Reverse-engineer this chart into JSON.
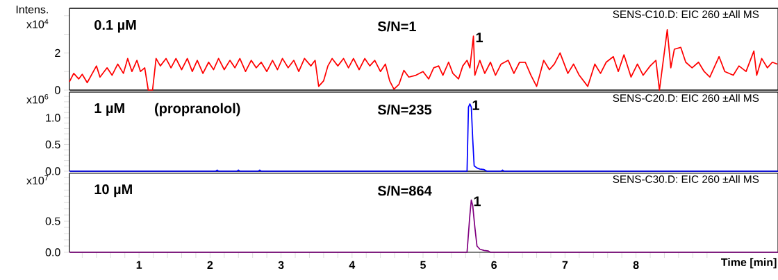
{
  "chart_data": [
    {
      "type": "line",
      "ylabel": "Intens. x10$^{4}$",
      "color": "#ff0000",
      "tick_labels": "y",
      "xlim": [
        0.02,
        10.0
      ],
      "ylim": [
        0,
        4.4
      ],
      "yticks": [
        0,
        {
          "value": 1,
          "label": null
        },
        2,
        {
          "value": 3,
          "label": null
        },
        {
          "value": 4,
          "label": null
        }
      ],
      "annotations": [
        "0.1 µM",
        "S/N=1",
        {
          "text": "1",
          "x": 5.71,
          "y": 2.9
        },
        "SENS-C10.D: EIC 260 ±All MS"
      ],
      "x": [
        0.02,
        0.08,
        0.15,
        0.2,
        0.27,
        0.4,
        0.45,
        0.55,
        0.62,
        0.7,
        0.78,
        0.84,
        0.9,
        0.97,
        1.02,
        1.08,
        1.13,
        1.19,
        1.24,
        1.3,
        1.38,
        1.45,
        1.52,
        1.6,
        1.68,
        1.75,
        1.82,
        1.9,
        1.98,
        2.05,
        2.12,
        2.2,
        2.28,
        2.35,
        2.42,
        2.5,
        2.58,
        2.65,
        2.72,
        2.8,
        2.88,
        2.95,
        3.02,
        3.1,
        3.18,
        3.25,
        3.33,
        3.42,
        3.48,
        3.53,
        3.6,
        3.66,
        3.72,
        3.8,
        3.88,
        3.95,
        4.02,
        4.1,
        4.18,
        4.25,
        4.32,
        4.4,
        4.47,
        4.53,
        4.59,
        4.66,
        4.73,
        4.8,
        4.9,
        5.0,
        5.08,
        5.15,
        5.22,
        5.28,
        5.36,
        5.42,
        5.5,
        5.56,
        5.62,
        5.66,
        5.71,
        5.73,
        5.8,
        5.87,
        5.95,
        6.02,
        6.1,
        6.2,
        6.28,
        6.36,
        6.44,
        6.52,
        6.6,
        6.7,
        6.78,
        6.85,
        6.93,
        7.04,
        7.12,
        7.2,
        7.32,
        7.42,
        7.5,
        7.58,
        7.68,
        7.75,
        7.83,
        7.93,
        8.02,
        8.1,
        8.2,
        8.28,
        8.33,
        8.44,
        8.49,
        8.54,
        8.63,
        8.7,
        8.79,
        8.88,
        8.96,
        9.04,
        9.17,
        9.25,
        9.37,
        9.45,
        9.55,
        9.66,
        9.7,
        9.77,
        9.85,
        9.92,
        9.99
      ],
      "values": [
        0.45,
        0.9,
        0.6,
        0.85,
        0.4,
        1.3,
        0.7,
        1.2,
        0.8,
        1.4,
        0.9,
        1.7,
        1.0,
        1.6,
        1.0,
        1.2,
        0.0,
        0.0,
        1.7,
        1.3,
        1.7,
        1.2,
        1.7,
        1.1,
        1.7,
        1.0,
        1.6,
        0.9,
        1.5,
        1.1,
        1.7,
        1.1,
        1.6,
        1.2,
        1.7,
        1.0,
        1.6,
        1.2,
        1.5,
        1.0,
        1.6,
        1.1,
        1.7,
        1.2,
        1.6,
        1.0,
        1.7,
        1.3,
        1.6,
        0.2,
        0.5,
        1.3,
        1.7,
        1.3,
        1.7,
        1.2,
        1.7,
        1.1,
        1.7,
        1.3,
        1.6,
        1.0,
        1.4,
        0.5,
        0.05,
        0.3,
        1.06,
        0.7,
        0.8,
        1.0,
        0.6,
        1.2,
        1.3,
        0.8,
        1.5,
        0.9,
        0.6,
        1.3,
        1.6,
        1.2,
        2.9,
        0.8,
        1.6,
        0.9,
        1.5,
        0.8,
        1.4,
        1.6,
        0.9,
        1.5,
        1.5,
        0.8,
        0.2,
        1.6,
        1.1,
        1.4,
        2.0,
        0.9,
        1.4,
        0.8,
        0.2,
        1.4,
        0.9,
        1.5,
        1.8,
        1.0,
        1.9,
        0.7,
        1.4,
        0.8,
        1.3,
        1.6,
        0.0,
        3.25,
        1.2,
        2.2,
        2.3,
        1.5,
        1.2,
        1.5,
        1.0,
        0.7,
        1.8,
        1.0,
        0.8,
        1.3,
        1.0,
        2.1,
        0.8,
        1.7,
        1.2,
        1.5,
        1.4
      ]
    },
    {
      "type": "line",
      "ylabel": "x10$^{6}$",
      "color": "#0000ff",
      "tick_labels": "y",
      "xlim": [
        0.02,
        10.0
      ],
      "ylim": [
        0,
        1.48
      ],
      "yticks": [
        {
          "value": 0,
          "label": "0.0"
        },
        {
          "value": 0.1,
          "label": null
        },
        {
          "value": 0.2,
          "label": null
        },
        {
          "value": 0.3,
          "label": null
        },
        {
          "value": 0.4,
          "label": null
        },
        {
          "value": 0.5,
          "label": "0.5"
        },
        {
          "value": 0.6,
          "label": null
        },
        {
          "value": 0.7,
          "label": null
        },
        {
          "value": 0.8,
          "label": null
        },
        {
          "value": 0.9,
          "label": null
        },
        {
          "value": 1.0,
          "label": "1.0"
        },
        {
          "value": 1.1,
          "label": null
        },
        {
          "value": 1.2,
          "label": null
        },
        {
          "value": 1.3,
          "label": null
        },
        {
          "value": 1.4,
          "label": null
        }
      ],
      "annotations": [
        "1 µM",
        "(propranolol)",
        "S/N=235",
        {
          "text": "1",
          "x": 5.66,
          "y": 1.26
        },
        "SENS-C20.D: EIC 260 ±All MS"
      ],
      "x": [
        0.02,
        2.08,
        2.1,
        2.12,
        2.38,
        2.4,
        2.42,
        2.68,
        2.7,
        2.72,
        5.62,
        5.64,
        5.66,
        5.68,
        5.7,
        5.72,
        5.76,
        5.8,
        5.86,
        5.9,
        6.1,
        6.12,
        6.14,
        10.0
      ],
      "values": [
        0,
        0,
        0.02,
        0,
        0,
        0.02,
        0,
        0,
        0.02,
        0,
        0,
        1.2,
        1.26,
        1.2,
        0.6,
        0.1,
        0.06,
        0.04,
        0.03,
        0,
        0,
        0.02,
        0,
        0
      ]
    },
    {
      "type": "line",
      "ylabel": "x10$^{7}$",
      "xlabel": "Time [min]",
      "color": "#800080",
      "xlim": [
        0.02,
        10.0
      ],
      "ylim": [
        0,
        1.27
      ],
      "xticks": [
        {
          "value": 0.2,
          "label": null
        },
        {
          "value": 0.4,
          "label": null
        },
        {
          "value": 0.6,
          "label": null
        },
        {
          "value": 0.8,
          "label": null
        },
        1,
        {
          "value": 1.2,
          "label": null
        },
        {
          "value": 1.4,
          "label": null
        },
        {
          "value": 1.6,
          "label": null
        },
        {
          "value": 1.8,
          "label": null
        },
        2,
        {
          "value": 2.2,
          "label": null
        },
        {
          "value": 2.4,
          "label": null
        },
        {
          "value": 2.6,
          "label": null
        },
        {
          "value": 2.8,
          "label": null
        },
        3,
        {
          "value": 3.2,
          "label": null
        },
        {
          "value": 3.4,
          "label": null
        },
        {
          "value": 3.6,
          "label": null
        },
        {
          "value": 3.8,
          "label": null
        },
        4,
        {
          "value": 4.2,
          "label": null
        },
        {
          "value": 4.4,
          "label": null
        },
        {
          "value": 4.6,
          "label": null
        },
        {
          "value": 4.8,
          "label": null
        },
        5,
        {
          "value": 5.2,
          "label": null
        },
        {
          "value": 5.4,
          "label": null
        },
        {
          "value": 5.6,
          "label": null
        },
        {
          "value": 5.8,
          "label": null
        },
        6,
        {
          "value": 6.2,
          "label": null
        },
        {
          "value": 6.4,
          "label": null
        },
        {
          "value": 6.6,
          "label": null
        },
        {
          "value": 6.8,
          "label": null
        },
        7,
        {
          "value": 7.2,
          "label": null
        },
        {
          "value": 7.4,
          "label": null
        },
        {
          "value": 7.6,
          "label": null
        },
        {
          "value": 7.8,
          "label": null
        },
        8,
        {
          "value": 8.2,
          "label": null
        },
        {
          "value": 8.4,
          "label": null
        },
        {
          "value": 8.6,
          "label": null
        },
        {
          "value": 8.8,
          "label": null
        },
        {
          "value": 9,
          "label": null
        }
      ],
      "yticks": [
        {
          "value": 0,
          "label": "0.0"
        },
        {
          "value": 0.1,
          "label": null
        },
        {
          "value": 0.2,
          "label": null
        },
        {
          "value": 0.3,
          "label": null
        },
        {
          "value": 0.4,
          "label": null
        },
        {
          "value": 0.5,
          "label": "0.5"
        },
        {
          "value": 0.6,
          "label": null
        },
        {
          "value": 0.7,
          "label": null
        },
        {
          "value": 0.8,
          "label": null
        },
        {
          "value": 0.9,
          "label": null
        },
        {
          "value": 1.0,
          "label": null
        },
        {
          "value": 1.1,
          "label": null
        },
        {
          "value": 1.2,
          "label": null
        }
      ],
      "annotations": [
        "10 µM",
        "S/N=864",
        {
          "text": "1",
          "x": 5.68,
          "y": 0.84
        },
        "SENS-C30.D: EIC 260 ±All MS"
      ],
      "x": [
        0.02,
        5.62,
        5.66,
        5.68,
        5.7,
        5.73,
        5.76,
        5.8,
        5.86,
        5.92,
        5.95,
        10.0
      ],
      "values": [
        0,
        0,
        0.6,
        0.84,
        0.75,
        0.4,
        0.1,
        0.05,
        0.03,
        0.02,
        0,
        0
      ]
    }
  ]
}
